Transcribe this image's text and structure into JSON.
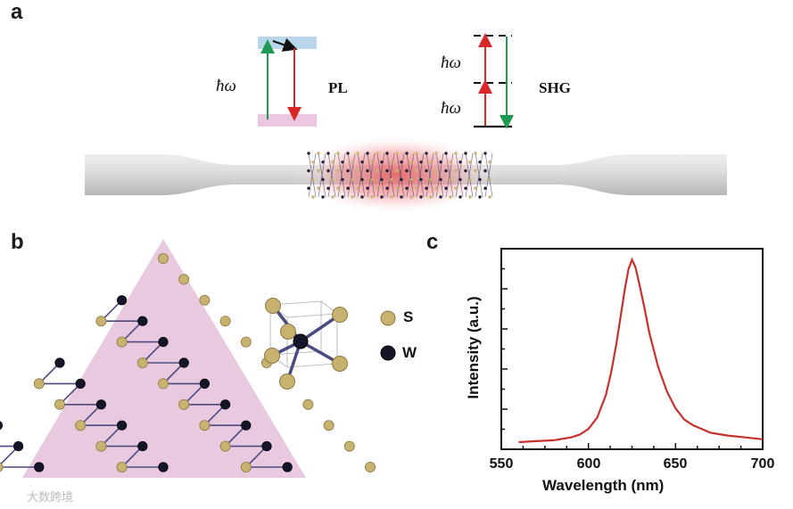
{
  "panels": {
    "a": "a",
    "b": "b",
    "c": "c"
  },
  "panel_a": {
    "pl_label": "PL",
    "shg_label": "SHG",
    "hbar_omega": "ħω",
    "colors": {
      "conduction_band": "#b9d7ea",
      "valence_band": "#ecc7e2",
      "excitation_arrow": "#1e9a55",
      "emission_arrow": "#d62828",
      "shg_fundamental_arrow": "#d62828",
      "shg_emission_arrow": "#1e9a55"
    }
  },
  "panel_b": {
    "legend": [
      {
        "symbol": "S",
        "color": "#c8b270"
      },
      {
        "symbol": "W",
        "color": "#15152a"
      }
    ],
    "triangle_color": "#e8c9df"
  },
  "chart_data": {
    "type": "line",
    "title": "",
    "xlabel": "Wavelength (nm)",
    "ylabel": "Intensity (a.u.)",
    "xlim": [
      550,
      700
    ],
    "ylim": [
      0,
      1
    ],
    "xticks": [
      550,
      600,
      650,
      700
    ],
    "series_color": "#c8302b",
    "series": [
      {
        "x": [
          560,
          570,
          580,
          590,
          595,
          600,
          605,
          610,
          613,
          616,
          619,
          621,
          623,
          625,
          627,
          629,
          632,
          635,
          640,
          645,
          650,
          655,
          660,
          670,
          680,
          690,
          700
        ],
        "y": [
          0.0,
          0.005,
          0.01,
          0.025,
          0.04,
          0.07,
          0.13,
          0.25,
          0.37,
          0.52,
          0.7,
          0.82,
          0.92,
          0.97,
          0.93,
          0.85,
          0.72,
          0.58,
          0.4,
          0.27,
          0.18,
          0.12,
          0.09,
          0.05,
          0.035,
          0.025,
          0.015
        ]
      }
    ]
  },
  "watermark": "大数跨境"
}
